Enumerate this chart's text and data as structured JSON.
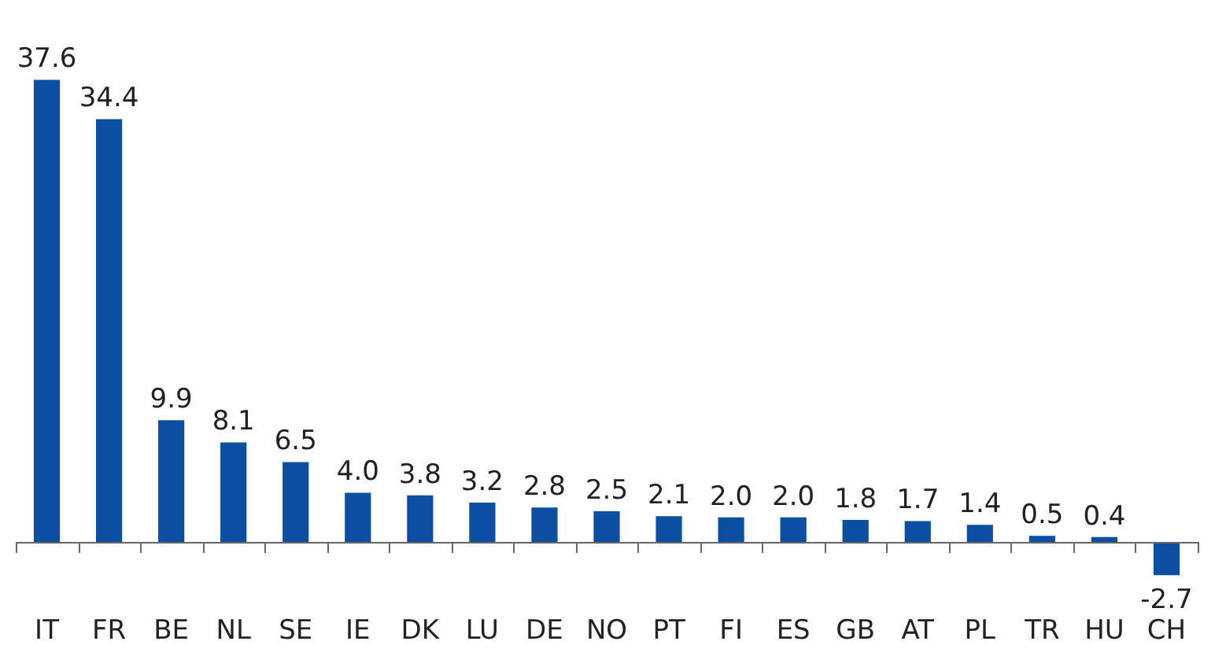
{
  "chart_data": {
    "type": "bar",
    "categories": [
      "IT",
      "FR",
      "BE",
      "NL",
      "SE",
      "IE",
      "DK",
      "LU",
      "DE",
      "NO",
      "PT",
      "FI",
      "ES",
      "GB",
      "AT",
      "PL",
      "TR",
      "HU",
      "CH"
    ],
    "values": [
      37.6,
      34.4,
      9.9,
      8.1,
      6.5,
      4.0,
      3.8,
      3.2,
      2.8,
      2.5,
      2.1,
      2.0,
      2.0,
      1.8,
      1.7,
      1.4,
      0.5,
      0.4,
      -2.7
    ],
    "value_labels": [
      "37.6",
      "34.4",
      "9.9",
      "8.1",
      "6.5",
      "4.0",
      "3.8",
      "3.2",
      "2.8",
      "2.5",
      "2.1",
      "2.0",
      "2.0",
      "1.8",
      "1.7",
      "1.4",
      "0.5",
      "0.4",
      "-2.7"
    ],
    "color": "#0b4ea2"
  }
}
